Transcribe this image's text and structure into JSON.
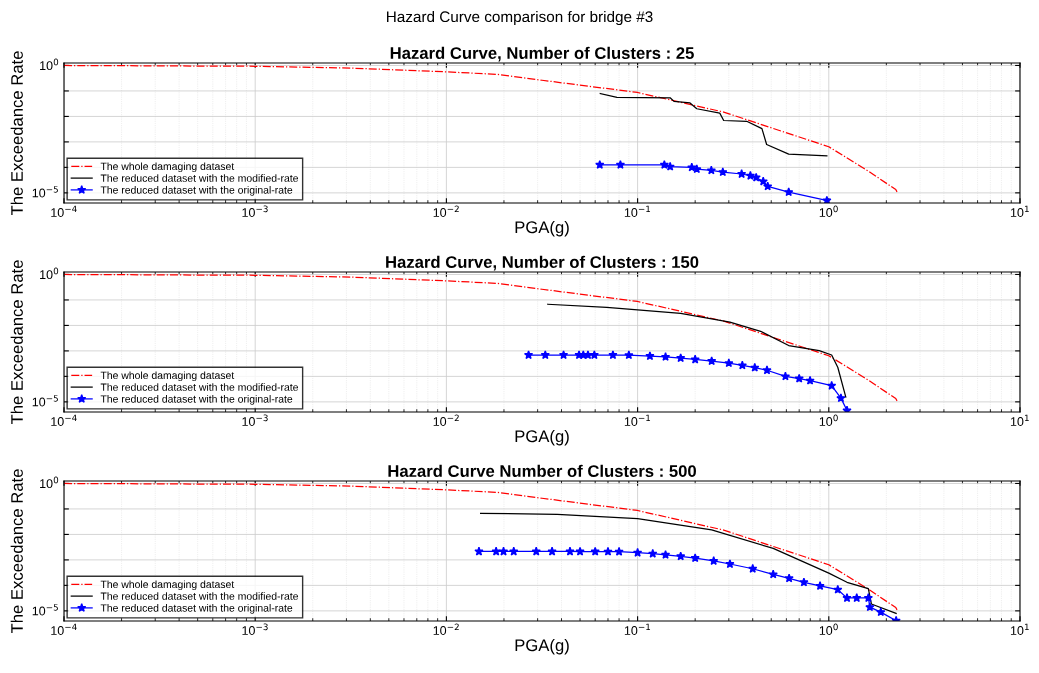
{
  "chart_data": [
    {
      "type": "line",
      "title": "Hazard Curve, Number of Clusters : 25",
      "subtitle": "Hazard Curve comparison for bridge #3",
      "xlabel": "PGA(g)",
      "ylabel": "The Exceedance Rate",
      "log": "xy",
      "grid": true,
      "legend": "bottom left",
      "xlim": [
        0.0001,
        10
      ],
      "ylim": [
        4e-06,
        1.25
      ],
      "xticks": [
        {
          "value": 0.0001,
          "label": "10$^{−4}$"
        },
        {
          "value": 0.001,
          "label": "10$^{−3}$"
        },
        {
          "value": 0.01,
          "label": "10$^{−2}$"
        },
        {
          "value": 0.1,
          "label": "10$^{−1}$"
        },
        {
          "value": 1,
          "label": "10$^{0}$"
        },
        {
          "value": 10,
          "label": "10$^{1}$"
        }
      ],
      "yticks": [
        {
          "value": 1e-05,
          "label": "10$^{−5}$"
        },
        {
          "value": 0.0001,
          "label": null
        },
        {
          "value": 0.001,
          "label": null
        },
        {
          "value": 0.01,
          "label": null
        },
        {
          "value": 0.1,
          "label": null
        },
        {
          "value": 1,
          "label": "10$^{0}$"
        }
      ],
      "series": [
        {
          "name": "The whole damaging dataset",
          "color": "#ff0000",
          "line_style": "dashed",
          "marker": "none",
          "x": [
            0.0001,
            0.001,
            0.00316,
            0.01,
            0.0186,
            0.0316,
            0.1,
            0.282,
            0.457,
            1.0,
            1.62,
            2.24,
            2.29
          ],
          "values": [
            1,
            0.93,
            0.79,
            0.56,
            0.447,
            0.263,
            0.087,
            0.0148,
            0.00447,
            0.000646,
            6.9e-05,
            1.35e-05,
            1e-05
          ]
        },
        {
          "name": "The reduced dataset with the modified-rate",
          "color": "#000000",
          "line_style": "solid",
          "marker": "none",
          "x": [
            0.0638,
            0.078,
            0.148,
            0.155,
            0.188,
            0.204,
            0.269,
            0.282,
            0.372,
            0.447,
            0.473,
            0.617,
            0.977
          ],
          "values": [
            0.0794,
            0.0562,
            0.0537,
            0.0389,
            0.0339,
            0.02,
            0.0135,
            0.00692,
            0.00646,
            0.00331,
            0.000794,
            0.000331,
            0.000282
          ]
        },
        {
          "name": "The reduced dataset with the original-rate",
          "color": "#0000ff",
          "line_style": "solid",
          "marker": "star",
          "x": [
            0.0634,
            0.0813,
            0.138,
            0.148,
            0.192,
            0.204,
            0.243,
            0.279,
            0.35,
            0.389,
            0.417,
            0.454,
            0.479,
            0.617,
            0.977
          ],
          "values": [
            0.000126,
            0.000126,
            0.000126,
            0.000107,
            0.0001,
            8.5e-05,
            7.6e-05,
            6.5e-05,
            5.5e-05,
            4.7e-05,
            4e-05,
            2.8e-05,
            1.8e-05,
            1.07e-05,
            5e-06
          ]
        }
      ]
    },
    {
      "type": "line",
      "title": "Hazard Curve, Number of Clusters : 150",
      "xlabel": "PGA(g)",
      "ylabel": "The Exceedance Rate",
      "log": "xy",
      "grid": true,
      "legend": "bottom left",
      "xlim": [
        0.0001,
        10
      ],
      "ylim": [
        4e-06,
        1.25
      ],
      "xticks": [
        {
          "value": 0.0001,
          "label": "10$^{−4}$"
        },
        {
          "value": 0.001,
          "label": "10$^{−3}$"
        },
        {
          "value": 0.01,
          "label": "10$^{−2}$"
        },
        {
          "value": 0.1,
          "label": "10$^{−1}$"
        },
        {
          "value": 1,
          "label": "10$^{0}$"
        },
        {
          "value": 10,
          "label": "10$^{1}$"
        }
      ],
      "yticks": [
        {
          "value": 1e-05,
          "label": "10$^{−5}$"
        },
        {
          "value": 0.0001,
          "label": null
        },
        {
          "value": 0.001,
          "label": null
        },
        {
          "value": 0.01,
          "label": null
        },
        {
          "value": 0.1,
          "label": null
        },
        {
          "value": 1,
          "label": "10$^{0}$"
        }
      ],
      "series": [
        {
          "name": "The whole damaging dataset",
          "color": "#ff0000",
          "line_style": "dashed",
          "marker": "none",
          "x": [
            0.0001,
            0.001,
            0.00316,
            0.01,
            0.0186,
            0.0316,
            0.1,
            0.282,
            0.457,
            1.0,
            1.62,
            2.24,
            2.29
          ],
          "values": [
            1,
            0.93,
            0.79,
            0.56,
            0.447,
            0.263,
            0.087,
            0.0148,
            0.00447,
            0.000646,
            6.9e-05,
            1.35e-05,
            1e-05
          ]
        },
        {
          "name": "The reduced dataset with the modified-rate",
          "color": "#000000",
          "line_style": "solid",
          "marker": "none",
          "x": [
            0.0339,
            0.069,
            0.168,
            0.304,
            0.44,
            0.617,
            0.891,
            1.035,
            1.114,
            1.227
          ],
          "values": [
            0.0676,
            0.0513,
            0.0295,
            0.0135,
            0.00589,
            0.00162,
            0.00102,
            0.00069,
            0.000229,
            1.55e-05
          ]
        },
        {
          "name": "The reduced dataset with the original-rate",
          "color": "#0000ff",
          "line_style": "solid",
          "marker": "star",
          "x": [
            0.0269,
            0.0329,
            0.041,
            0.0494,
            0.052,
            0.055,
            0.0594,
            0.0743,
            0.09,
            0.116,
            0.14,
            0.168,
            0.2,
            0.244,
            0.3,
            0.353,
            0.41,
            0.475,
            0.593,
            0.7,
            0.798,
            1.035,
            1.157,
            1.245
          ],
          "values": [
            0.00069,
            0.00069,
            0.00069,
            0.00069,
            0.00069,
            0.00069,
            0.00069,
            0.00069,
            0.00068,
            0.00063,
            0.00058,
            0.000525,
            0.00046,
            0.000398,
            0.00033,
            0.000269,
            0.00022,
            0.000174,
            0.0001,
            8.2e-05,
            6.8e-05,
            4.3e-05,
            1.4e-05,
            4.6e-06
          ]
        }
      ]
    },
    {
      "type": "line",
      "title": "Hazard Curve Number of Clusters : 500",
      "xlabel": "PGA(g)",
      "ylabel": "The Exceedance Rate",
      "log": "xy",
      "grid": true,
      "legend": "bottom left",
      "xlim": [
        0.0001,
        10
      ],
      "ylim": [
        4e-06,
        1.25
      ],
      "xticks": [
        {
          "value": 0.0001,
          "label": "10$^{−4}$"
        },
        {
          "value": 0.001,
          "label": "10$^{−3}$"
        },
        {
          "value": 0.01,
          "label": "10$^{−2}$"
        },
        {
          "value": 0.1,
          "label": "10$^{−1}$"
        },
        {
          "value": 1,
          "label": "10$^{0}$"
        },
        {
          "value": 10,
          "label": "10$^{1}$"
        }
      ],
      "yticks": [
        {
          "value": 1e-05,
          "label": "10$^{−5}$"
        },
        {
          "value": 0.0001,
          "label": null
        },
        {
          "value": 0.001,
          "label": null
        },
        {
          "value": 0.01,
          "label": null
        },
        {
          "value": 0.1,
          "label": null
        },
        {
          "value": 1,
          "label": "10$^{0}$"
        }
      ],
      "series": [
        {
          "name": "The whole damaging dataset",
          "color": "#ff0000",
          "line_style": "dashed",
          "marker": "none",
          "x": [
            0.0001,
            0.001,
            0.00316,
            0.01,
            0.0186,
            0.0316,
            0.1,
            0.282,
            0.457,
            1.0,
            1.62,
            2.24,
            2.29
          ],
          "values": [
            1,
            0.93,
            0.79,
            0.56,
            0.447,
            0.263,
            0.087,
            0.0148,
            0.00447,
            0.000646,
            6.9e-05,
            1.35e-05,
            1e-05
          ]
        },
        {
          "name": "The reduced dataset with the modified-rate",
          "color": "#000000",
          "line_style": "solid",
          "marker": "none",
          "x": [
            0.0151,
            0.038,
            0.1,
            0.244,
            0.512,
            1.0,
            1.245,
            1.61,
            1.67,
            2.25
          ],
          "values": [
            0.0676,
            0.0617,
            0.0417,
            0.0151,
            0.00282,
            0.000302,
            0.000132,
            7.4e-05,
            1.86e-05,
            7.9e-06
          ]
        },
        {
          "name": "The reduced dataset with the original-rate",
          "color": "#0000ff",
          "line_style": "solid",
          "marker": "star",
          "x": [
            0.0148,
            0.0182,
            0.0199,
            0.0225,
            0.0295,
            0.0357,
            0.0443,
            0.05,
            0.06,
            0.07,
            0.08,
            0.1,
            0.12,
            0.14,
            0.168,
            0.2,
            0.25,
            0.304,
            0.4,
            0.512,
            0.62,
            0.741,
            0.9,
            1.114,
            1.245,
            1.4,
            1.61,
            1.64,
            1.87,
            2.25
          ],
          "values": [
            0.00214,
            0.00214,
            0.00214,
            0.00214,
            0.00214,
            0.00214,
            0.00214,
            0.00213,
            0.00212,
            0.00211,
            0.0021,
            0.00191,
            0.00175,
            0.00158,
            0.00138,
            0.00118,
            0.00091,
            0.00069,
            0.00045,
            0.000269,
            0.00019,
            0.000132,
            9.5e-05,
            6.8e-05,
            3.2e-05,
            3.2e-05,
            3.2e-05,
            1.4e-05,
            8.9e-06,
            4.1e-06
          ]
        }
      ]
    }
  ]
}
